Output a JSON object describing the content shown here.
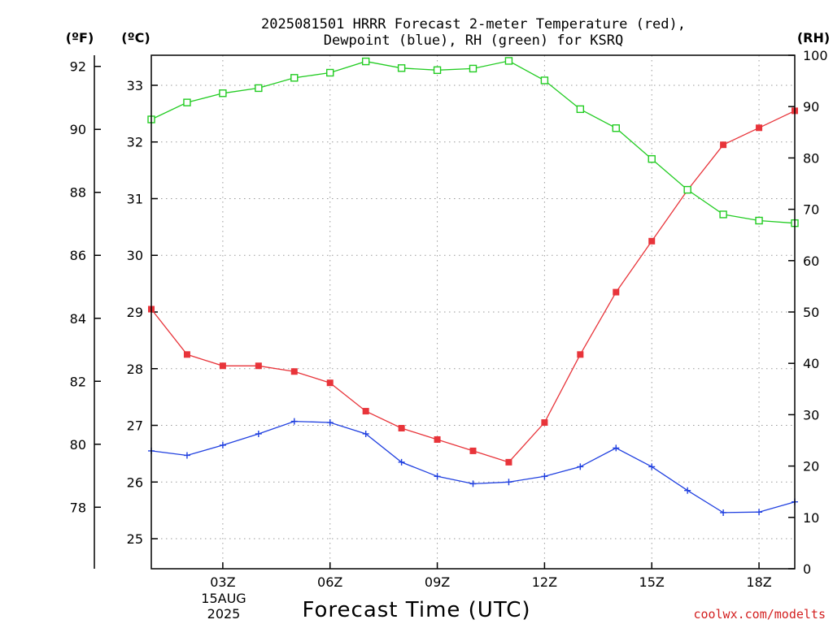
{
  "header": {
    "title_line1": "2025081501 HRRR Forecast 2-meter Temperature (red),",
    "title_line2": "Dewpoint (blue), RH (green) for KSRQ",
    "unit_f": "(ºF)",
    "unit_c": "(ºC)",
    "unit_rh": "(RH)"
  },
  "footer": {
    "xlabel": "Forecast Time (UTC)",
    "date_day": "15AUG",
    "date_year": "2025",
    "credit": "coolwx.com/modelts"
  },
  "chart_data": {
    "type": "line",
    "title": "2025081501 HRRR Forecast 2-meter Temperature (red), Dewpoint (blue), RH (green) for KSRQ",
    "xlabel": "Forecast Time (UTC)",
    "x": [
      1,
      2,
      3,
      4,
      5,
      6,
      7,
      8,
      9,
      10,
      11,
      12,
      13,
      14,
      15,
      16,
      17,
      18,
      19
    ],
    "xlim": [
      1,
      19
    ],
    "x_ticks": [
      3,
      6,
      9,
      12,
      15,
      18
    ],
    "x_tick_labels": [
      "03Z",
      "06Z",
      "09Z",
      "12Z",
      "15Z",
      "18Z"
    ],
    "y_left_celsius": {
      "ylim": [
        24.47,
        33.53
      ],
      "ticks": [
        25,
        26,
        27,
        28,
        29,
        30,
        31,
        32,
        33
      ]
    },
    "y_far_left_fahrenheit": {
      "ticks": [
        78,
        80,
        82,
        84,
        86,
        88,
        90,
        92
      ]
    },
    "y_right_rh": {
      "ylim": [
        0,
        100
      ],
      "ticks": [
        0,
        10,
        20,
        30,
        40,
        50,
        60,
        70,
        80,
        90,
        100
      ]
    },
    "grid": true,
    "series": [
      {
        "name": "2-meter Temperature (red)",
        "axis": "celsius",
        "color": "#e8343a",
        "marker": "filled-square",
        "values": [
          29.05,
          28.25,
          28.05,
          28.05,
          27.95,
          27.75,
          27.25,
          26.95,
          26.75,
          26.55,
          26.35,
          27.05,
          28.25,
          29.35,
          30.25,
          31.15,
          31.95,
          32.25,
          32.55
        ]
      },
      {
        "name": "Dewpoint (blue)",
        "axis": "celsius",
        "color": "#2040e0",
        "marker": "plus",
        "values": [
          26.55,
          26.47,
          26.65,
          26.85,
          27.07,
          27.05,
          26.85,
          26.35,
          26.1,
          25.97,
          26.0,
          26.1,
          26.27,
          26.6,
          26.27,
          25.85,
          25.46,
          25.47,
          25.65
        ]
      },
      {
        "name": "RH (green)",
        "axis": "rh",
        "color": "#22cc22",
        "marker": "open-square",
        "values": [
          87.5,
          90.8,
          92.6,
          93.6,
          95.6,
          96.6,
          98.8,
          97.5,
          97.1,
          97.4,
          98.9,
          95.1,
          89.5,
          85.8,
          79.8,
          73.8,
          69.0,
          67.8,
          67.3
        ]
      }
    ]
  }
}
